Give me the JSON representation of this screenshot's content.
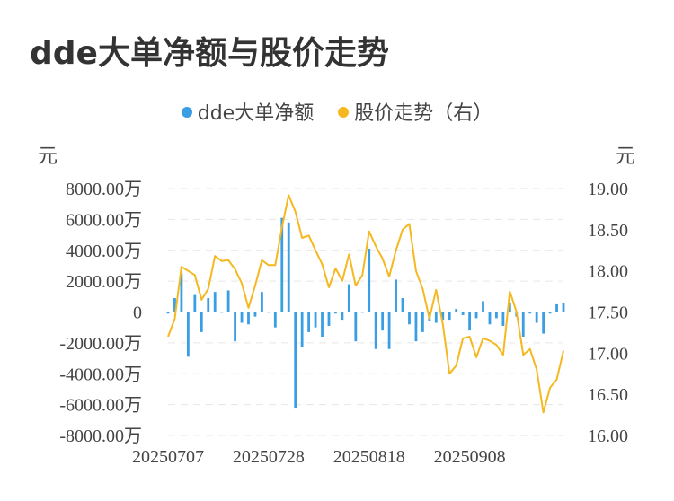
{
  "title": "dde大单净额与股价走势",
  "legend": {
    "series1": "dde大单净额",
    "series2": "股价走势（右）",
    "color1": "#3a9ee4",
    "color2": "#f5b820"
  },
  "units": {
    "left": "元",
    "right": "元"
  },
  "chart_data": {
    "type": "bar+line",
    "title": "dde大单净额与股价走势",
    "left_axis": {
      "ylim": [
        -8000,
        8000
      ],
      "ticks": [
        8000,
        6000,
        4000,
        2000,
        0,
        -2000,
        -4000,
        -6000,
        -8000
      ],
      "tick_labels": [
        "8000.00万",
        "6000.00万",
        "4000.00万",
        "2000.00万",
        "0",
        "-2000.00万",
        "-4000.00万",
        "-6000.00万",
        "-8000.00万"
      ],
      "unit": "元"
    },
    "right_axis": {
      "ylim": [
        16.0,
        19.0
      ],
      "ticks": [
        19.0,
        18.5,
        18.0,
        17.5,
        17.0,
        16.5,
        16.0
      ],
      "tick_labels": [
        "19.00",
        "18.50",
        "18.00",
        "17.50",
        "17.00",
        "16.50",
        "16.00"
      ],
      "unit": "元"
    },
    "x_tick_labels": [
      {
        "index": 0,
        "label": "20250707"
      },
      {
        "index": 15,
        "label": "20250728"
      },
      {
        "index": 30,
        "label": "20250818"
      },
      {
        "index": 45,
        "label": "20250908"
      }
    ],
    "series": [
      {
        "name": "dde大单净额",
        "kind": "bar",
        "unit": "万元",
        "values": [
          -100,
          900,
          2500,
          -2900,
          1100,
          -1300,
          900,
          1300,
          0,
          1400,
          -1900,
          -700,
          -800,
          -300,
          1300,
          0,
          -1000,
          6100,
          5800,
          -6200,
          -2300,
          -1300,
          -1000,
          -1600,
          -900,
          -100,
          -500,
          1800,
          -1900,
          0,
          4100,
          -2400,
          -1200,
          -2400,
          2100,
          900,
          -800,
          -1900,
          -1300,
          -600,
          -700,
          -500,
          -500,
          200,
          -200,
          -1200,
          -400,
          700,
          -800,
          -400,
          -900,
          600,
          -300,
          -1600,
          -100,
          -700,
          -1400,
          -100,
          500,
          600
        ]
      },
      {
        "name": "股价走势（右）",
        "kind": "line",
        "unit": "元",
        "values": [
          17.2,
          17.42,
          18.05,
          18.0,
          17.95,
          17.65,
          17.78,
          18.18,
          18.12,
          18.13,
          18.02,
          17.85,
          17.55,
          17.82,
          18.13,
          18.07,
          18.07,
          18.53,
          18.92,
          18.72,
          18.4,
          18.43,
          18.25,
          18.08,
          17.8,
          18.03,
          17.88,
          18.2,
          17.82,
          17.95,
          18.48,
          18.3,
          18.15,
          17.93,
          18.25,
          18.5,
          18.57,
          18.0,
          17.78,
          17.42,
          17.77,
          17.35,
          16.75,
          16.85,
          17.18,
          17.2,
          16.95,
          17.18,
          17.15,
          17.1,
          16.98,
          17.75,
          17.5,
          16.98,
          17.05,
          16.8,
          16.28,
          16.58,
          16.68,
          17.03
        ]
      }
    ]
  }
}
